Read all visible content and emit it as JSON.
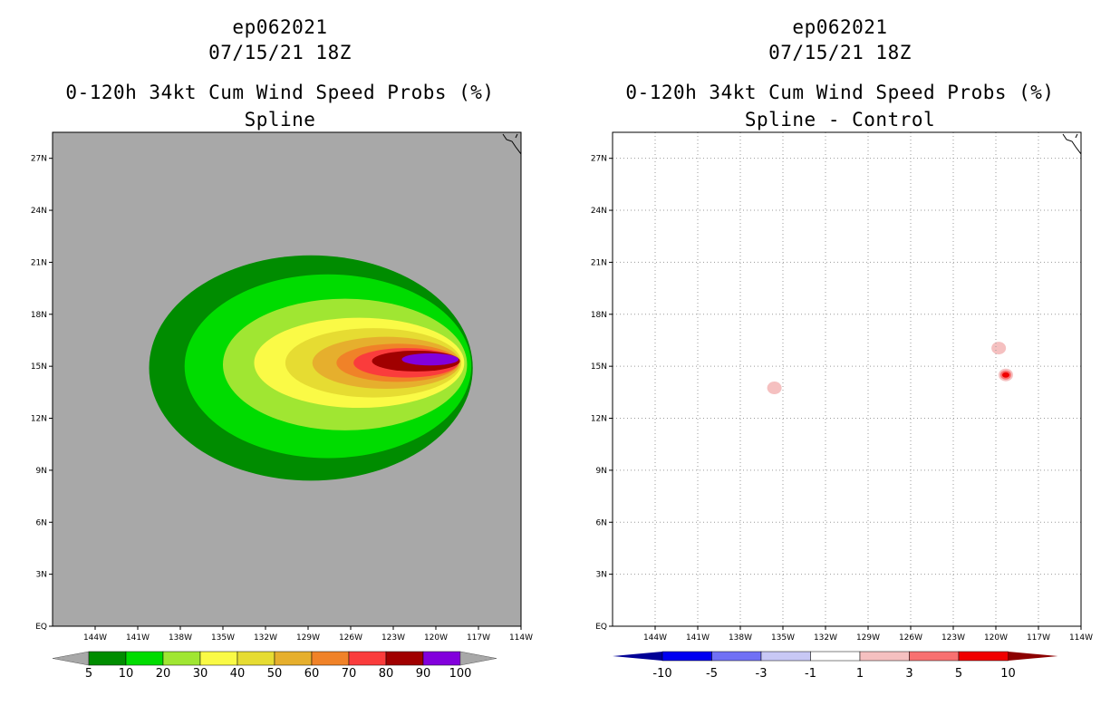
{
  "chart_data": [
    {
      "type": "contour-map",
      "panel": "left",
      "storm_id": "ep062021",
      "datetime": "07/15/21 18Z",
      "title": "0-120h 34kt Cum Wind Speed Probs (%)",
      "subtitle": "Spline",
      "lon_range": [
        -147,
        -114
      ],
      "lat_range": [
        0,
        28.5
      ],
      "x_ticks": [
        {
          "lon": -144,
          "label": "144W"
        },
        {
          "lon": -141,
          "label": "141W"
        },
        {
          "lon": -138,
          "label": "138W"
        },
        {
          "lon": -135,
          "label": "135W"
        },
        {
          "lon": -132,
          "label": "132W"
        },
        {
          "lon": -129,
          "label": "129W"
        },
        {
          "lon": -126,
          "label": "126W"
        },
        {
          "lon": -123,
          "label": "123W"
        },
        {
          "lon": -120,
          "label": "120W"
        },
        {
          "lon": -117,
          "label": "117W"
        },
        {
          "lon": -114,
          "label": "114W"
        }
      ],
      "y_ticks": [
        {
          "lat": 0,
          "label": "EQ"
        },
        {
          "lat": 3,
          "label": "3N"
        },
        {
          "lat": 6,
          "label": "6N"
        },
        {
          "lat": 9,
          "label": "9N"
        },
        {
          "lat": 12,
          "label": "12N"
        },
        {
          "lat": 15,
          "label": "15N"
        },
        {
          "lat": 18,
          "label": "18N"
        },
        {
          "lat": 21,
          "label": "21N"
        },
        {
          "lat": 24,
          "label": "24N"
        },
        {
          "lat": 27,
          "label": "27N"
        }
      ],
      "background_color": "#a8a8a8",
      "contour_levels": [
        5,
        10,
        20,
        30,
        40,
        50,
        60,
        70,
        80,
        90,
        100
      ],
      "contours": [
        {
          "min": 5,
          "color": "#008c00",
          "cx": -128.8,
          "cy": 14.9,
          "rx": 11.4,
          "ry": 6.5
        },
        {
          "min": 10,
          "color": "#00dc00",
          "cx": -127.6,
          "cy": 15.0,
          "rx": 10.1,
          "ry": 5.3
        },
        {
          "min": 20,
          "color": "#a0e632",
          "cx": -126.4,
          "cy": 15.1,
          "rx": 8.6,
          "ry": 3.8
        },
        {
          "min": 30,
          "color": "#fafa46",
          "cx": -125.4,
          "cy": 15.2,
          "rx": 7.4,
          "ry": 2.6
        },
        {
          "min": 40,
          "color": "#e6dc32",
          "cx": -124.4,
          "cy": 15.2,
          "rx": 6.2,
          "ry": 2.0
        },
        {
          "min": 50,
          "color": "#e6af2d",
          "cx": -123.5,
          "cy": 15.2,
          "rx": 5.2,
          "ry": 1.5
        },
        {
          "min": 60,
          "color": "#f08228",
          "cx": -122.7,
          "cy": 15.2,
          "rx": 4.3,
          "ry": 1.1
        },
        {
          "min": 70,
          "color": "#fa3c3c",
          "cx": -122.1,
          "cy": 15.2,
          "rx": 3.7,
          "ry": 0.85
        },
        {
          "min": 80,
          "color": "#a00000",
          "cx": -121.4,
          "cy": 15.3,
          "rx": 3.1,
          "ry": 0.6
        },
        {
          "min": 90,
          "color": "#8200dc",
          "cx": -120.4,
          "cy": 15.4,
          "rx": 2.0,
          "ry": 0.35
        }
      ],
      "colorbar": {
        "labels": [
          "5",
          "10",
          "20",
          "30",
          "40",
          "50",
          "60",
          "70",
          "80",
          "90",
          "100"
        ],
        "colors": [
          "#008c00",
          "#00dc00",
          "#a0e632",
          "#fafa46",
          "#e6dc32",
          "#e6af2d",
          "#f08228",
          "#fa3c3c",
          "#a00000",
          "#8200dc"
        ],
        "end_color": "#a8a8a8"
      }
    },
    {
      "type": "contour-map",
      "panel": "right",
      "storm_id": "ep062021",
      "datetime": "07/15/21 18Z",
      "title": "0-120h 34kt Cum Wind Speed Probs (%)",
      "subtitle": "Spline - Control",
      "lon_range": [
        -147,
        -114
      ],
      "lat_range": [
        0,
        28.5
      ],
      "x_ticks": [
        {
          "lon": -144,
          "label": "144W"
        },
        {
          "lon": -141,
          "label": "141W"
        },
        {
          "lon": -138,
          "label": "138W"
        },
        {
          "lon": -135,
          "label": "135W"
        },
        {
          "lon": -132,
          "label": "132W"
        },
        {
          "lon": -129,
          "label": "129W"
        },
        {
          "lon": -126,
          "label": "126W"
        },
        {
          "lon": -123,
          "label": "123W"
        },
        {
          "lon": -120,
          "label": "120W"
        },
        {
          "lon": -117,
          "label": "117W"
        },
        {
          "lon": -114,
          "label": "114W"
        }
      ],
      "y_ticks": [
        {
          "lat": 0,
          "label": "EQ"
        },
        {
          "lat": 3,
          "label": "3N"
        },
        {
          "lat": 6,
          "label": "6N"
        },
        {
          "lat": 9,
          "label": "9N"
        },
        {
          "lat": 12,
          "label": "12N"
        },
        {
          "lat": 15,
          "label": "15N"
        },
        {
          "lat": 18,
          "label": "18N"
        },
        {
          "lat": 21,
          "label": "21N"
        },
        {
          "lat": 24,
          "label": "24N"
        },
        {
          "lat": 27,
          "label": "27N"
        }
      ],
      "background_color": "#ffffff",
      "grid": true,
      "difference_spots": [
        {
          "lon": -135.6,
          "lat": 13.75,
          "value": 2,
          "color": "#f5c0c0"
        },
        {
          "lon": -119.8,
          "lat": 16.05,
          "value": 2,
          "color": "#f5c0c0"
        },
        {
          "lon": -119.3,
          "lat": 14.5,
          "value": 2,
          "color": "#f5c0c0"
        },
        {
          "lon": -119.3,
          "lat": 14.5,
          "value": 4,
          "color": "#f87070"
        },
        {
          "lon": -119.3,
          "lat": 14.5,
          "value": 6,
          "color": "#f00000"
        }
      ],
      "colorbar": {
        "labels": [
          "-10",
          "-5",
          "-3",
          "-1",
          "1",
          "3",
          "5",
          "10"
        ],
        "colors": [
          "#0000f0",
          "#7070f5",
          "#c8c8f5",
          "#ffffff",
          "#f5c0c0",
          "#f87070",
          "#f00000"
        ],
        "left_end_color": "#000096",
        "right_end_color": "#8c0000"
      }
    }
  ]
}
